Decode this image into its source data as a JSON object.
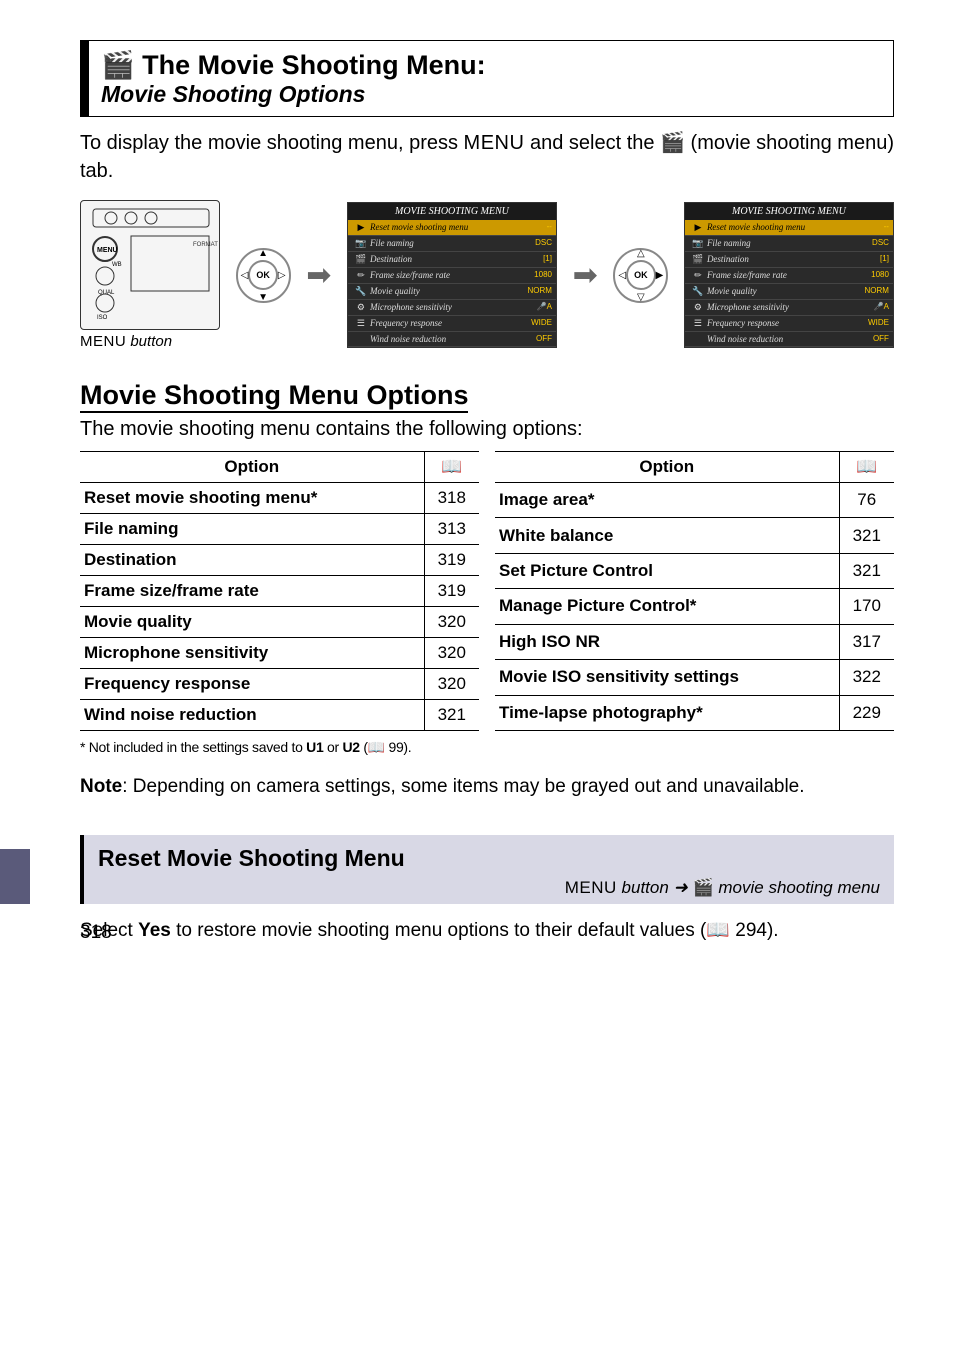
{
  "title": {
    "icon": "🎬",
    "main": "The Movie Shooting Menu:",
    "sub": "Movie Shooting Options"
  },
  "intro": {
    "text_before": "To display the movie shooting menu, press ",
    "menu_key": "MENU",
    "text_mid": " and select the ",
    "icon": "🎬",
    "text_after": " (movie shooting menu) tab."
  },
  "camera_label_prefix": "MENU",
  "camera_label_suffix": " button",
  "menu_screenshot": {
    "header": "MOVIE SHOOTING MENU",
    "items": [
      {
        "label": "Reset movie shooting menu",
        "value": "--",
        "highlight": true
      },
      {
        "label": "File naming",
        "value": "DSC"
      },
      {
        "label": "Destination",
        "value": "[1]"
      },
      {
        "label": "Frame size/frame rate",
        "value": "1080"
      },
      {
        "label": "Movie quality",
        "value": "NORM"
      },
      {
        "label": "Microphone sensitivity",
        "value": "🎤A"
      },
      {
        "label": "Frequency response",
        "value": "WIDE"
      },
      {
        "label": "Wind noise reduction",
        "value": "OFF"
      }
    ]
  },
  "section": {
    "heading": "Movie Shooting Menu Options",
    "intro": "The movie shooting menu contains the following options:"
  },
  "table_left": {
    "header_option": "Option",
    "header_page": "📖",
    "rows": [
      {
        "option": "Reset movie shooting menu*",
        "page": "318"
      },
      {
        "option": "File naming",
        "page": "313"
      },
      {
        "option": "Destination",
        "page": "319"
      },
      {
        "option": "Frame size/frame rate",
        "page": "319"
      },
      {
        "option": "Movie quality",
        "page": "320"
      },
      {
        "option": "Microphone sensitivity",
        "page": "320"
      },
      {
        "option": "Frequency response",
        "page": "320"
      },
      {
        "option": "Wind noise reduction",
        "page": "321"
      }
    ]
  },
  "table_right": {
    "header_option": "Option",
    "header_page": "📖",
    "rows": [
      {
        "option": "Image area*",
        "page": "76"
      },
      {
        "option": "White balance",
        "page": "321"
      },
      {
        "option": "Set Picture Control",
        "page": "321"
      },
      {
        "option": "Manage Picture Control*",
        "page": "170"
      },
      {
        "option": "High ISO NR",
        "page": "317"
      },
      {
        "option": "Movie ISO sensitivity settings",
        "page": "322"
      },
      {
        "option": "Time-lapse photography*",
        "page": "229"
      }
    ]
  },
  "footnote": {
    "marker": "*",
    "text_before": " Not included in the settings saved to ",
    "u1": "U1",
    "or": " or ",
    "u2": "U2",
    "text_after": " (📖 99)."
  },
  "note": {
    "label": "Note",
    "text": ": Depending on camera settings, some items may be grayed out and unavailable."
  },
  "subsection": {
    "title": "Reset Movie Shooting Menu",
    "path_prefix": "MENU",
    "path_mid": " button  ➜  ",
    "path_icon": "🎬",
    "path_suffix": " movie shooting menu"
  },
  "body": {
    "text_before": "Select ",
    "yes": "Yes",
    "text_mid": " to restore movie shooting menu options to their default values (📖 294)."
  },
  "page_number": "318"
}
